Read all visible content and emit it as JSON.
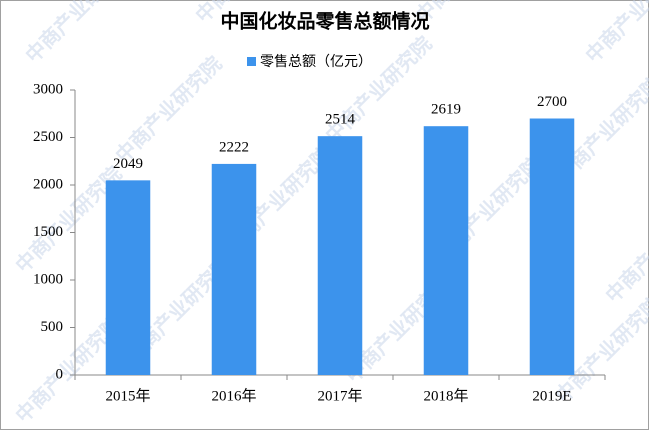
{
  "chart_data": {
    "type": "bar",
    "title": "中国化妆品零售总额情况",
    "watermark": "中商产业研究院",
    "categories": [
      "2015年",
      "2016年",
      "2017年",
      "2018年",
      "2019E"
    ],
    "series": [
      {
        "name": "零售总额（亿元）",
        "color": "#3c93ec",
        "values": [
          2049,
          2222,
          2514,
          2619,
          2700
        ]
      }
    ],
    "ylim": [
      0,
      3000
    ],
    "yticks": [
      0,
      500,
      1000,
      1500,
      2000,
      2500,
      3000
    ],
    "grid": false,
    "legend": "top"
  }
}
